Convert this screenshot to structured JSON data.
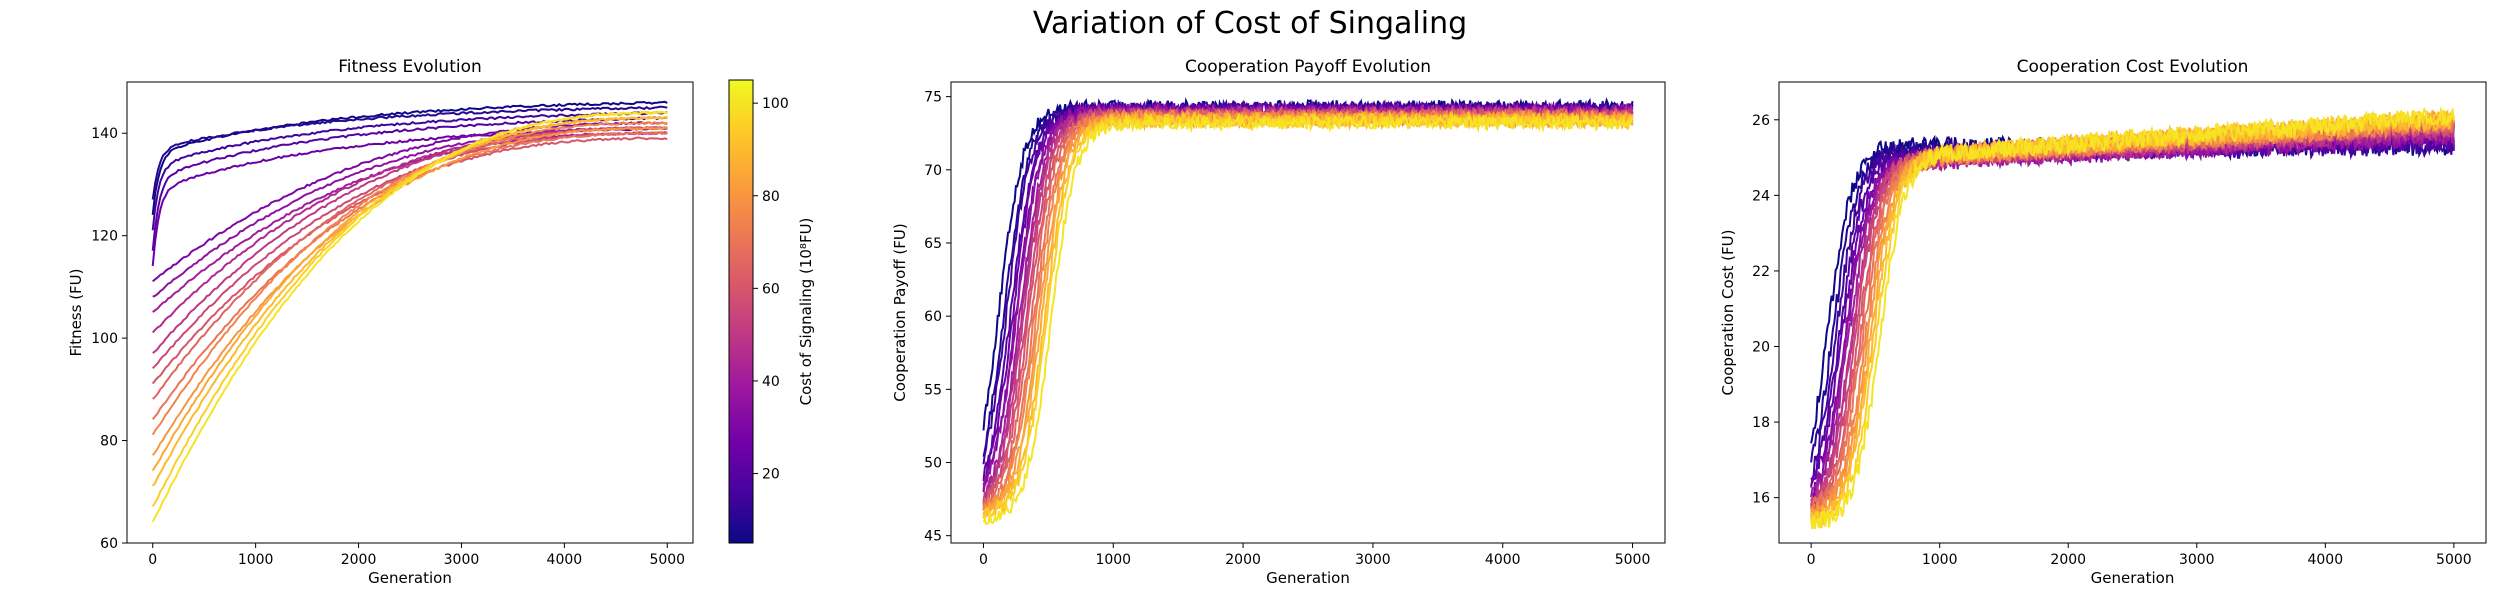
{
  "figure": {
    "suptitle": "Variation of Cost of Singaling"
  },
  "colorbar": {
    "label": "Cost of Signaling (10⁸FU)",
    "ticks": [
      20,
      40,
      60,
      80,
      100
    ],
    "range": [
      5,
      105
    ],
    "colormap": "plasma",
    "colormap_stops": [
      "#0d0887",
      "#47039f",
      "#7301a8",
      "#9c179e",
      "#bd3786",
      "#d8576b",
      "#ed7953",
      "#fb9f3a",
      "#fdca26",
      "#f0f921"
    ]
  },
  "chart_data": [
    {
      "type": "line",
      "title": "Fitness Evolution",
      "xlabel": "Generation",
      "ylabel": "Fitness (FU)",
      "xlim": [
        -250,
        5250
      ],
      "ylim": [
        60,
        150
      ],
      "xticks": [
        0,
        1000,
        2000,
        3000,
        4000,
        5000
      ],
      "yticks": [
        60,
        80,
        100,
        120,
        140
      ],
      "grid": false,
      "series_note": "one line per cost of signaling value, colored by colorbar",
      "series": [
        {
          "cost": 5,
          "start": 124,
          "end": 146
        },
        {
          "cost": 10,
          "start": 127,
          "end": 145
        },
        {
          "cost": 15,
          "start": 121,
          "end": 144
        },
        {
          "cost": 20,
          "start": 117,
          "end": 143
        },
        {
          "cost": 25,
          "start": 114,
          "end": 141
        },
        {
          "cost": 30,
          "start": 111,
          "end": 142
        },
        {
          "cost": 35,
          "start": 108,
          "end": 141
        },
        {
          "cost": 40,
          "start": 105,
          "end": 140
        },
        {
          "cost": 45,
          "start": 101,
          "end": 141
        },
        {
          "cost": 50,
          "start": 97,
          "end": 141
        },
        {
          "cost": 55,
          "start": 94,
          "end": 140
        },
        {
          "cost": 60,
          "start": 91,
          "end": 139
        },
        {
          "cost": 65,
          "start": 88,
          "end": 141
        },
        {
          "cost": 70,
          "start": 84,
          "end": 140
        },
        {
          "cost": 75,
          "start": 81,
          "end": 142
        },
        {
          "cost": 80,
          "start": 77,
          "end": 141
        },
        {
          "cost": 85,
          "start": 74,
          "end": 143
        },
        {
          "cost": 90,
          "start": 71,
          "end": 143
        },
        {
          "cost": 95,
          "start": 67,
          "end": 144
        },
        {
          "cost": 100,
          "start": 64,
          "end": 144
        }
      ]
    },
    {
      "type": "line",
      "title": "Cooperation Payoff Evolution",
      "xlabel": "Generation",
      "ylabel": "Cooperation Payoff (FU)",
      "xlim": [
        -250,
        5250
      ],
      "ylim": [
        44.5,
        76
      ],
      "xticks": [
        0,
        1000,
        2000,
        3000,
        4000,
        5000
      ],
      "yticks": [
        45,
        50,
        55,
        60,
        65,
        70,
        75
      ],
      "grid": false,
      "series_note": "one line per cost of signaling value, colored by colorbar",
      "series": [
        {
          "cost": 5,
          "start": 46.5,
          "plateau": 74.3,
          "rise_mid": 120
        },
        {
          "cost": 10,
          "start": 46.5,
          "plateau": 74.1,
          "rise_mid": 160
        },
        {
          "cost": 15,
          "start": 46.7,
          "plateau": 74.2,
          "rise_mid": 180
        },
        {
          "cost": 20,
          "start": 46.4,
          "plateau": 74.0,
          "rise_mid": 210
        },
        {
          "cost": 25,
          "start": 46.6,
          "plateau": 74.1,
          "rise_mid": 230
        },
        {
          "cost": 30,
          "start": 46.5,
          "plateau": 73.9,
          "rise_mid": 250
        },
        {
          "cost": 35,
          "start": 46.8,
          "plateau": 74.0,
          "rise_mid": 260
        },
        {
          "cost": 40,
          "start": 46.3,
          "plateau": 73.8,
          "rise_mid": 280
        },
        {
          "cost": 45,
          "start": 46.6,
          "plateau": 73.9,
          "rise_mid": 300
        },
        {
          "cost": 50,
          "start": 46.5,
          "plateau": 73.7,
          "rise_mid": 310
        },
        {
          "cost": 55,
          "start": 46.4,
          "plateau": 73.8,
          "rise_mid": 330
        },
        {
          "cost": 60,
          "start": 46.7,
          "plateau": 73.6,
          "rise_mid": 350
        },
        {
          "cost": 65,
          "start": 46.5,
          "plateau": 73.7,
          "rise_mid": 370
        },
        {
          "cost": 70,
          "start": 46.3,
          "plateau": 73.5,
          "rise_mid": 390
        },
        {
          "cost": 75,
          "start": 46.6,
          "plateau": 73.6,
          "rise_mid": 410
        },
        {
          "cost": 80,
          "start": 46.4,
          "plateau": 73.4,
          "rise_mid": 430
        },
        {
          "cost": 85,
          "start": 46.5,
          "plateau": 73.5,
          "rise_mid": 450
        },
        {
          "cost": 90,
          "start": 46.2,
          "plateau": 73.3,
          "rise_mid": 470
        },
        {
          "cost": 95,
          "start": 46.4,
          "plateau": 73.4,
          "rise_mid": 490
        },
        {
          "cost": 100,
          "start": 46.0,
          "plateau": 73.2,
          "rise_mid": 520
        }
      ]
    },
    {
      "type": "line",
      "title": "Cooperation Cost Evolution",
      "xlabel": "Generation",
      "ylabel": "Cooperation Cost (FU)",
      "xlim": [
        -250,
        5250
      ],
      "ylim": [
        14.8,
        27
      ],
      "xticks": [
        0,
        1000,
        2000,
        3000,
        4000,
        5000
      ],
      "yticks": [
        16,
        18,
        20,
        22,
        24,
        26
      ],
      "grid": false,
      "series_note": "one line per cost of signaling value, colored by colorbar",
      "series": [
        {
          "cost": 5,
          "start": 15.5,
          "plateau": 25.3,
          "end": 25.3,
          "rise_mid": 130
        },
        {
          "cost": 10,
          "start": 15.6,
          "plateau": 25.2,
          "end": 25.4,
          "rise_mid": 170
        },
        {
          "cost": 15,
          "start": 15.4,
          "plateau": 25.1,
          "end": 25.3,
          "rise_mid": 190
        },
        {
          "cost": 20,
          "start": 15.5,
          "plateau": 25.0,
          "end": 25.4,
          "rise_mid": 220
        },
        {
          "cost": 25,
          "start": 15.6,
          "plateau": 24.9,
          "end": 25.5,
          "rise_mid": 240
        },
        {
          "cost": 30,
          "start": 15.4,
          "plateau": 24.9,
          "end": 25.6,
          "rise_mid": 260
        },
        {
          "cost": 35,
          "start": 15.5,
          "plateau": 24.8,
          "end": 25.5,
          "rise_mid": 270
        },
        {
          "cost": 40,
          "start": 15.6,
          "plateau": 24.8,
          "end": 25.6,
          "rise_mid": 290
        },
        {
          "cost": 45,
          "start": 15.4,
          "plateau": 24.8,
          "end": 25.7,
          "rise_mid": 310
        },
        {
          "cost": 50,
          "start": 15.5,
          "plateau": 24.9,
          "end": 25.7,
          "rise_mid": 320
        },
        {
          "cost": 55,
          "start": 15.5,
          "plateau": 24.9,
          "end": 25.8,
          "rise_mid": 340
        },
        {
          "cost": 60,
          "start": 15.4,
          "plateau": 24.9,
          "end": 25.8,
          "rise_mid": 360
        },
        {
          "cost": 65,
          "start": 15.5,
          "plateau": 24.9,
          "end": 25.9,
          "rise_mid": 380
        },
        {
          "cost": 70,
          "start": 15.6,
          "plateau": 24.9,
          "end": 25.9,
          "rise_mid": 400
        },
        {
          "cost": 75,
          "start": 15.4,
          "plateau": 24.9,
          "end": 25.9,
          "rise_mid": 420
        },
        {
          "cost": 80,
          "start": 15.5,
          "plateau": 24.9,
          "end": 26.0,
          "rise_mid": 440
        },
        {
          "cost": 85,
          "start": 15.4,
          "plateau": 25.0,
          "end": 26.0,
          "rise_mid": 460
        },
        {
          "cost": 90,
          "start": 15.5,
          "plateau": 25.0,
          "end": 26.0,
          "rise_mid": 480
        },
        {
          "cost": 95,
          "start": 15.3,
          "plateau": 25.0,
          "end": 26.1,
          "rise_mid": 500
        },
        {
          "cost": 100,
          "start": 15.3,
          "plateau": 25.0,
          "end": 26.1,
          "rise_mid": 530
        }
      ]
    }
  ]
}
